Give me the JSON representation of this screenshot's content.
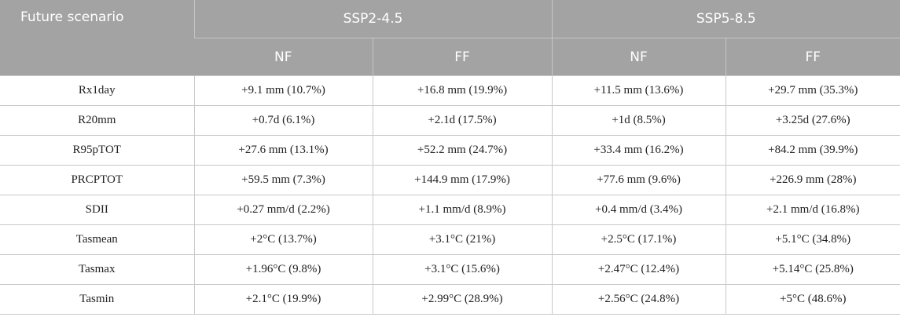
{
  "header": {
    "corner_label": "Future scenario",
    "scenarios": [
      "SSP2-4.5",
      "SSP5-8.5"
    ],
    "periods": [
      "NF",
      "FF",
      "NF",
      "FF"
    ]
  },
  "rows": [
    {
      "index": "Rx1day",
      "values": [
        "+9.1 mm (10.7%)",
        "+16.8 mm (19.9%)",
        "+11.5 mm (13.6%)",
        "+29.7 mm (35.3%)"
      ]
    },
    {
      "index": "R20mm",
      "values": [
        "+0.7d (6.1%)",
        "+2.1d (17.5%)",
        "+1d (8.5%)",
        "+3.25d (27.6%)"
      ]
    },
    {
      "index": "R95pTOT",
      "values": [
        "+27.6 mm (13.1%)",
        "+52.2 mm (24.7%)",
        "+33.4 mm (16.2%)",
        "+84.2 mm (39.9%)"
      ]
    },
    {
      "index": "PRCPTOT",
      "values": [
        "+59.5 mm (7.3%)",
        "+144.9 mm (17.9%)",
        "+77.6 mm (9.6%)",
        "+226.9 mm (28%)"
      ]
    },
    {
      "index": "SDII",
      "values": [
        "+0.27 mm/d (2.2%)",
        "+1.1 mm/d (8.9%)",
        "+0.4 mm/d (3.4%)",
        "+2.1 mm/d (16.8%)"
      ]
    },
    {
      "index": "Tasmean",
      "values": [
        "+2°C (13.7%)",
        "+3.1°C (21%)",
        "+2.5°C (17.1%)",
        "+5.1°C (34.8%)"
      ]
    },
    {
      "index": "Tasmax",
      "values": [
        "+1.96°C (9.8%)",
        "+3.1°C (15.6%)",
        "+2.47°C (12.4%)",
        "+5.14°C (25.8%)"
      ]
    },
    {
      "index": "Tasmin",
      "values": [
        "+2.1°C (19.9%)",
        "+2.99°C (28.9%)",
        "+2.56°C (24.8%)",
        "+5°C (48.6%)"
      ]
    }
  ],
  "colors": {
    "header_background": "#a3a3a3",
    "header_text": "#ffffff",
    "grid_line": "#c8c8c8"
  }
}
